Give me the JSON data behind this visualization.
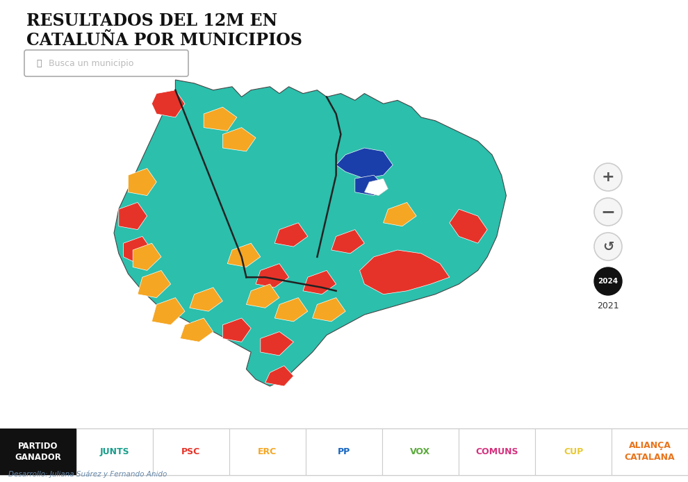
{
  "title_line1": "RESULTADOS DEL 12M EN",
  "title_line2": "CATALUÑA POR MUNICIPIOS",
  "search_placeholder": "Busca un municipio",
  "legend_items": [
    {
      "label": "PARTIDO\nGANADOR",
      "text_color": "#ffffff",
      "bg_color": "#111111"
    },
    {
      "label": "JUNTS",
      "text_color": "#1a9e8c",
      "bg_color": "#ffffff"
    },
    {
      "label": "PSC",
      "text_color": "#e63329",
      "bg_color": "#ffffff"
    },
    {
      "label": "ERC",
      "text_color": "#f5a623",
      "bg_color": "#ffffff"
    },
    {
      "label": "PP",
      "text_color": "#1565c0",
      "bg_color": "#ffffff"
    },
    {
      "label": "VOX",
      "text_color": "#5aaa3b",
      "bg_color": "#ffffff"
    },
    {
      "label": "COMUNS",
      "text_color": "#d4327e",
      "bg_color": "#ffffff"
    },
    {
      "label": "CUP",
      "text_color": "#e8c832",
      "bg_color": "#ffffff"
    },
    {
      "label": "ALIANÇA\nCATALANA",
      "text_color": "#e8741c",
      "bg_color": "#ffffff"
    }
  ],
  "credit_text": "Desarrollo: Juliana Suárez y Fernando Anido",
  "bg_color": "#ffffff",
  "teal": "#2bbfac",
  "red": "#e63329",
  "orange": "#f5a623",
  "blue": "#1a3faa",
  "white": "#ffffff"
}
